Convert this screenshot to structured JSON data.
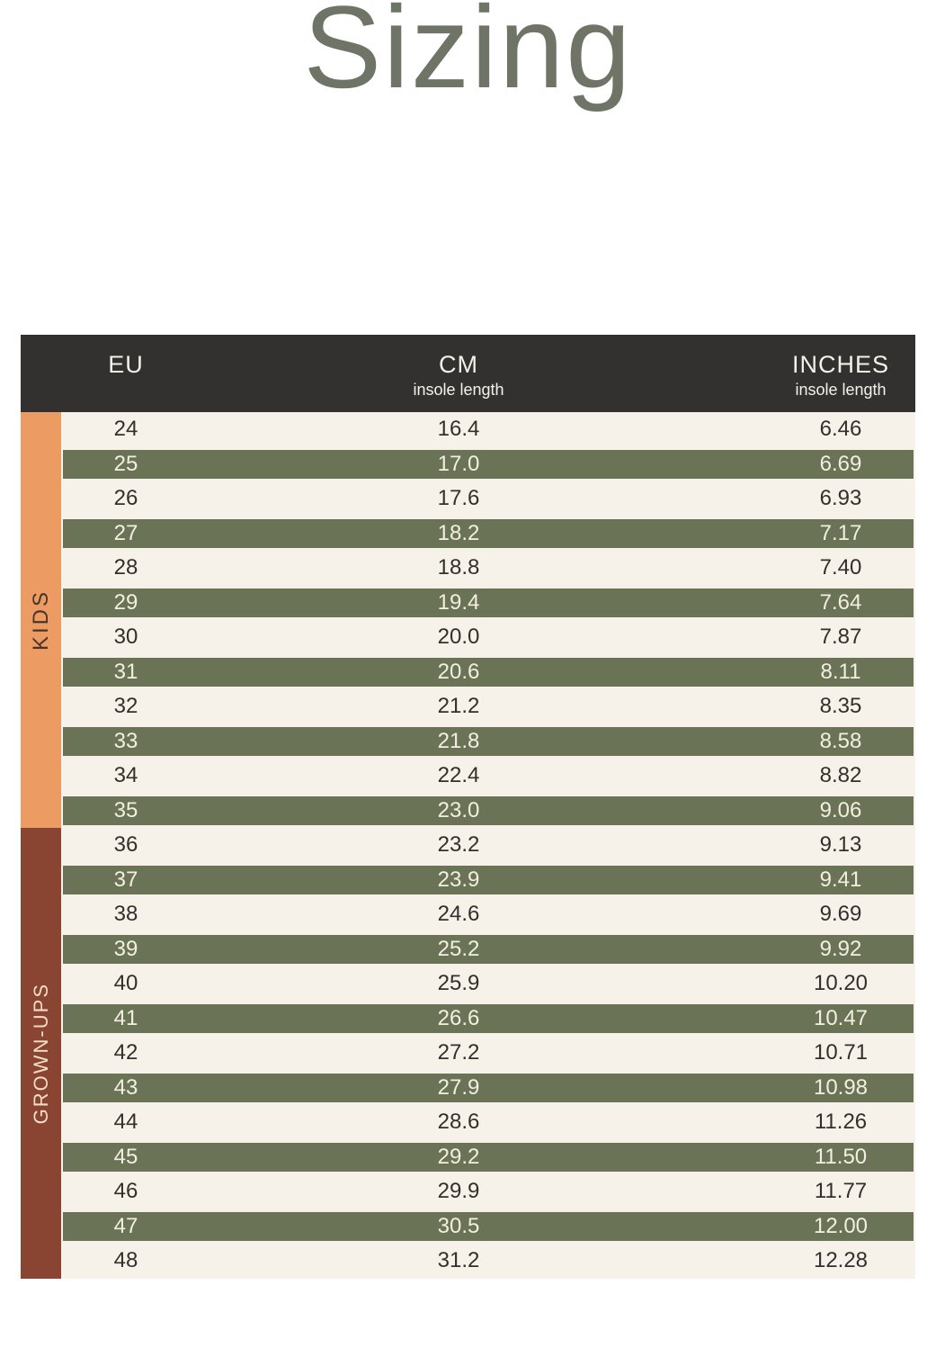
{
  "title": "Sizing",
  "table": {
    "columns": [
      {
        "label": "EU",
        "sublabel": ""
      },
      {
        "label": "CM",
        "sublabel": "insole length"
      },
      {
        "label": "INCHES",
        "sublabel": "insole length"
      }
    ],
    "groups": [
      {
        "label": "KIDS",
        "rows": [
          {
            "eu": "24",
            "cm": "16.4",
            "inches": "6.46"
          },
          {
            "eu": "25",
            "cm": "17.0",
            "inches": "6.69"
          },
          {
            "eu": "26",
            "cm": "17.6",
            "inches": "6.93"
          },
          {
            "eu": "27",
            "cm": "18.2",
            "inches": "7.17"
          },
          {
            "eu": "28",
            "cm": "18.8",
            "inches": "7.40"
          },
          {
            "eu": "29",
            "cm": "19.4",
            "inches": "7.64"
          },
          {
            "eu": "30",
            "cm": "20.0",
            "inches": "7.87"
          },
          {
            "eu": "31",
            "cm": "20.6",
            "inches": "8.11"
          },
          {
            "eu": "32",
            "cm": "21.2",
            "inches": "8.35"
          },
          {
            "eu": "33",
            "cm": "21.8",
            "inches": "8.58"
          },
          {
            "eu": "34",
            "cm": "22.4",
            "inches": "8.82"
          },
          {
            "eu": "35",
            "cm": "23.0",
            "inches": "9.06"
          }
        ]
      },
      {
        "label": "GROWN-UPS",
        "rows": [
          {
            "eu": "36",
            "cm": "23.2",
            "inches": "9.13"
          },
          {
            "eu": "37",
            "cm": "23.9",
            "inches": "9.41"
          },
          {
            "eu": "38",
            "cm": "24.6",
            "inches": "9.69"
          },
          {
            "eu": "39",
            "cm": "25.2",
            "inches": "9.92"
          },
          {
            "eu": "40",
            "cm": "25.9",
            "inches": "10.20"
          },
          {
            "eu": "41",
            "cm": "26.6",
            "inches": "10.47"
          },
          {
            "eu": "42",
            "cm": "27.2",
            "inches": "10.71"
          },
          {
            "eu": "43",
            "cm": "27.9",
            "inches": "10.98"
          },
          {
            "eu": "44",
            "cm": "28.6",
            "inches": "11.26"
          },
          {
            "eu": "45",
            "cm": "29.2",
            "inches": "11.50"
          },
          {
            "eu": "46",
            "cm": "29.9",
            "inches": "11.77"
          },
          {
            "eu": "47",
            "cm": "30.5",
            "inches": "12.00"
          },
          {
            "eu": "48",
            "cm": "31.2",
            "inches": "12.28"
          }
        ]
      }
    ]
  },
  "colors": {
    "page_bg": "#ffffff",
    "title_text": "#6f7566",
    "header_bg": "#323130",
    "header_text": "#f5f1e8",
    "row_cream": "#f7f2e9",
    "row_green": "#6a7356",
    "row_text_dark": "#32302b",
    "row_text_light": "#f3efe0",
    "kids_strip": "#ec9b62",
    "kids_text": "#47352a",
    "grownups_strip": "#8a4432",
    "grownups_text": "#f3ddc8"
  },
  "chart_data": {
    "type": "table",
    "title": "Sizing",
    "columns": [
      "EU",
      "CM insole length",
      "INCHES insole length"
    ],
    "row_groups": [
      {
        "name": "KIDS",
        "rows": [
          [
            24,
            16.4,
            6.46
          ],
          [
            25,
            17.0,
            6.69
          ],
          [
            26,
            17.6,
            6.93
          ],
          [
            27,
            18.2,
            7.17
          ],
          [
            28,
            18.8,
            7.4
          ],
          [
            29,
            19.4,
            7.64
          ],
          [
            30,
            20.0,
            7.87
          ],
          [
            31,
            20.6,
            8.11
          ],
          [
            32,
            21.2,
            8.35
          ],
          [
            33,
            21.8,
            8.58
          ],
          [
            34,
            22.4,
            8.82
          ],
          [
            35,
            23.0,
            9.06
          ]
        ]
      },
      {
        "name": "GROWN-UPS",
        "rows": [
          [
            36,
            23.2,
            9.13
          ],
          [
            37,
            23.9,
            9.41
          ],
          [
            38,
            24.6,
            9.69
          ],
          [
            39,
            25.2,
            9.92
          ],
          [
            40,
            25.9,
            10.2
          ],
          [
            41,
            26.6,
            10.47
          ],
          [
            42,
            27.2,
            10.71
          ],
          [
            43,
            27.9,
            10.98
          ],
          [
            44,
            28.6,
            11.26
          ],
          [
            45,
            29.2,
            11.5
          ],
          [
            46,
            29.9,
            11.77
          ],
          [
            47,
            30.5,
            12.0
          ],
          [
            48,
            31.2,
            12.28
          ]
        ]
      }
    ],
    "layout": {
      "stripes": "alternating cream/olive starting cream at EU 24",
      "group_bands": "vertical labels on left: KIDS (orange), GROWN-UPS (rust brown)"
    }
  }
}
